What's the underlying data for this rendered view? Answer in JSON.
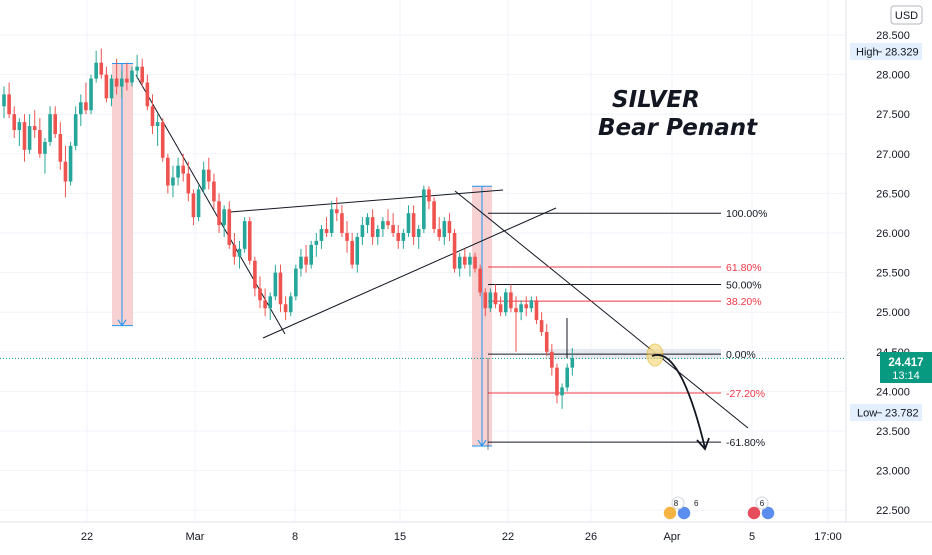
{
  "currency": "USD",
  "price_axis": {
    "ticks": [
      "28.500",
      "28.000",
      "27.500",
      "27.000",
      "26.500",
      "26.000",
      "25.500",
      "25.000",
      "24.500",
      "24.000",
      "23.500",
      "23.000",
      "22.500"
    ],
    "high_label": "High",
    "high_value": "28.329",
    "low_label": "Low",
    "low_value": "23.782",
    "last_price": "24.417",
    "countdown": "13:14"
  },
  "time_axis": {
    "labels": [
      "22",
      "Mar",
      "8",
      "15",
      "22",
      "26",
      "Apr",
      "5",
      "17:00"
    ]
  },
  "annotation": {
    "title_line1": "SILVER",
    "title_line2": "Bear Penant"
  },
  "colors": {
    "up": "#26a69a",
    "down": "#ef5350",
    "fib_black": "#131722",
    "fib_red": "#f23645",
    "measure_fill": "#f7c9cb",
    "measure_line": "#2196f3",
    "last_price_bg": "#089981"
  },
  "chart_data": {
    "type": "candlestick",
    "symbol": "SILVER",
    "currency": "USD",
    "ylim": [
      22.35,
      28.75
    ],
    "x_labels": [
      "22",
      "Mar",
      "8",
      "15",
      "22",
      "26",
      "Apr",
      "5",
      "17:00"
    ],
    "high": 28.329,
    "low": 23.782,
    "last": 24.417,
    "fibonacci": [
      {
        "label": "100.00%",
        "price": 26.25
      },
      {
        "label": "61.80%",
        "price": 25.57
      },
      {
        "label": "50.00%",
        "price": 25.35
      },
      {
        "label": "38.20%",
        "price": 25.14
      },
      {
        "label": "0.00%",
        "price": 24.47
      },
      {
        "label": "-27.20%",
        "price": 23.98
      },
      {
        "label": "-61.80%",
        "price": 23.36
      }
    ],
    "measure_moves": [
      {
        "from": 28.14,
        "to": 24.83
      },
      {
        "from": 26.59,
        "to": 23.31
      }
    ],
    "ohlc": [
      [
        27.6,
        27.85,
        27.45,
        27.75
      ],
      [
        27.75,
        27.9,
        27.45,
        27.5
      ],
      [
        27.5,
        27.6,
        27.2,
        27.3
      ],
      [
        27.3,
        27.45,
        27.1,
        27.4
      ],
      [
        27.4,
        27.5,
        26.9,
        27.05
      ],
      [
        27.05,
        27.5,
        27.0,
        27.35
      ],
      [
        27.35,
        27.55,
        27.2,
        27.3
      ],
      [
        27.3,
        27.45,
        26.95,
        27.0
      ],
      [
        27.0,
        27.2,
        26.75,
        27.15
      ],
      [
        27.15,
        27.6,
        27.1,
        27.5
      ],
      [
        27.5,
        27.6,
        27.2,
        27.25
      ],
      [
        27.25,
        27.4,
        26.8,
        26.9
      ],
      [
        26.9,
        27.1,
        26.45,
        26.65
      ],
      [
        26.65,
        27.15,
        26.6,
        27.1
      ],
      [
        27.1,
        27.6,
        27.05,
        27.5
      ],
      [
        27.5,
        27.75,
        27.35,
        27.65
      ],
      [
        27.65,
        27.9,
        27.5,
        27.55
      ],
      [
        27.55,
        28.0,
        27.5,
        27.95
      ],
      [
        27.95,
        28.3,
        27.9,
        28.15
      ],
      [
        28.15,
        28.33,
        27.95,
        28.0
      ],
      [
        28.0,
        28.1,
        27.65,
        27.7
      ],
      [
        27.7,
        28.0,
        27.6,
        27.95
      ],
      [
        27.95,
        28.2,
        27.75,
        27.85
      ],
      [
        27.85,
        28.05,
        27.7,
        27.95
      ],
      [
        27.95,
        28.15,
        27.8,
        27.9
      ],
      [
        27.9,
        28.1,
        27.85,
        28.05
      ],
      [
        28.05,
        28.25,
        27.95,
        28.1
      ],
      [
        28.1,
        28.2,
        27.85,
        27.9
      ],
      [
        27.9,
        28.0,
        27.55,
        27.6
      ],
      [
        27.6,
        27.75,
        27.25,
        27.35
      ],
      [
        27.35,
        27.5,
        27.1,
        27.4
      ],
      [
        27.4,
        27.45,
        26.9,
        26.95
      ],
      [
        26.95,
        27.0,
        26.5,
        26.6
      ],
      [
        26.6,
        26.85,
        26.45,
        26.7
      ],
      [
        26.7,
        26.95,
        26.6,
        26.85
      ],
      [
        26.85,
        27.0,
        26.65,
        26.75
      ],
      [
        26.75,
        26.9,
        26.4,
        26.5
      ],
      [
        26.5,
        26.55,
        26.1,
        26.2
      ],
      [
        26.2,
        26.6,
        26.15,
        26.55
      ],
      [
        26.55,
        26.9,
        26.5,
        26.8
      ],
      [
        26.8,
        26.95,
        26.55,
        26.65
      ],
      [
        26.65,
        26.75,
        26.3,
        26.4
      ],
      [
        26.4,
        26.5,
        26.0,
        26.1
      ],
      [
        26.1,
        26.35,
        25.95,
        26.3
      ],
      [
        26.3,
        26.4,
        25.8,
        25.85
      ],
      [
        25.85,
        26.0,
        25.6,
        25.7
      ],
      [
        25.7,
        25.9,
        25.55,
        25.8
      ],
      [
        25.8,
        26.2,
        25.75,
        26.15
      ],
      [
        26.15,
        26.2,
        25.6,
        25.65
      ],
      [
        25.65,
        25.7,
        25.2,
        25.3
      ],
      [
        25.3,
        25.45,
        25.05,
        25.15
      ],
      [
        25.15,
        25.3,
        24.95,
        25.05
      ],
      [
        25.05,
        25.25,
        24.9,
        25.2
      ],
      [
        25.2,
        25.6,
        25.15,
        25.5
      ],
      [
        25.5,
        25.6,
        25.0,
        25.1
      ],
      [
        25.1,
        25.2,
        24.9,
        25.0
      ],
      [
        25.0,
        25.25,
        24.95,
        25.2
      ],
      [
        25.2,
        25.6,
        25.15,
        25.55
      ],
      [
        25.55,
        25.8,
        25.45,
        25.7
      ],
      [
        25.7,
        25.85,
        25.5,
        25.6
      ],
      [
        25.6,
        25.9,
        25.55,
        25.85
      ],
      [
        25.85,
        26.0,
        25.7,
        25.9
      ],
      [
        25.9,
        26.1,
        25.8,
        26.05
      ],
      [
        26.05,
        26.2,
        25.95,
        26.0
      ],
      [
        26.0,
        26.4,
        25.95,
        26.3
      ],
      [
        26.3,
        26.45,
        26.15,
        26.25
      ],
      [
        26.25,
        26.35,
        25.95,
        26.0
      ],
      [
        26.0,
        26.15,
        25.75,
        25.9
      ],
      [
        25.9,
        26.0,
        25.55,
        25.6
      ],
      [
        25.6,
        26.0,
        25.5,
        25.95
      ],
      [
        25.95,
        26.2,
        25.85,
        26.1
      ],
      [
        26.1,
        26.25,
        26.0,
        26.2
      ],
      [
        26.2,
        26.3,
        25.85,
        25.95
      ],
      [
        25.95,
        26.1,
        25.85,
        26.05
      ],
      [
        26.05,
        26.2,
        25.95,
        26.15
      ],
      [
        26.15,
        26.3,
        26.05,
        26.1
      ],
      [
        26.1,
        26.25,
        25.95,
        26.0
      ],
      [
        26.0,
        26.1,
        25.8,
        25.9
      ],
      [
        25.9,
        26.05,
        25.8,
        26.0
      ],
      [
        26.0,
        26.35,
        25.95,
        26.25
      ],
      [
        26.25,
        26.35,
        25.85,
        25.95
      ],
      [
        25.95,
        26.1,
        25.8,
        26.05
      ],
      [
        26.05,
        26.6,
        26.0,
        26.55
      ],
      [
        26.55,
        26.59,
        26.3,
        26.4
      ],
      [
        26.4,
        26.45,
        26.0,
        26.05
      ],
      [
        26.05,
        26.2,
        25.9,
        25.95
      ],
      [
        25.95,
        26.2,
        25.85,
        26.15
      ],
      [
        26.15,
        26.25,
        25.9,
        26.0
      ],
      [
        26.0,
        26.05,
        25.5,
        25.55
      ],
      [
        25.55,
        25.75,
        25.45,
        25.7
      ],
      [
        25.7,
        25.8,
        25.55,
        25.6
      ],
      [
        25.6,
        25.75,
        25.45,
        25.7
      ],
      [
        25.7,
        25.75,
        25.5,
        25.55
      ],
      [
        25.55,
        25.6,
        25.2,
        25.25
      ],
      [
        25.25,
        25.3,
        24.95,
        25.05
      ],
      [
        25.05,
        25.3,
        25.0,
        25.25
      ],
      [
        25.25,
        25.35,
        25.05,
        25.1
      ],
      [
        25.1,
        25.2,
        24.95,
        25.0
      ],
      [
        25.0,
        25.3,
        24.95,
        25.25
      ],
      [
        25.25,
        25.35,
        25.0,
        25.05
      ],
      [
        25.05,
        25.2,
        24.5,
        25.0
      ],
      [
        25.0,
        25.15,
        24.9,
        25.1
      ],
      [
        25.1,
        25.2,
        24.95,
        25.05
      ],
      [
        25.05,
        25.2,
        25.0,
        25.15
      ],
      [
        25.15,
        25.2,
        24.85,
        24.9
      ],
      [
        24.9,
        25.0,
        24.7,
        24.75
      ],
      [
        24.75,
        24.85,
        24.45,
        24.5
      ],
      [
        24.5,
        24.6,
        24.2,
        24.3
      ],
      [
        24.3,
        24.35,
        23.85,
        23.95
      ],
      [
        23.95,
        24.1,
        23.78,
        24.05
      ],
      [
        24.05,
        24.35,
        24.0,
        24.3
      ],
      [
        24.3,
        24.55,
        24.2,
        24.42
      ]
    ]
  }
}
